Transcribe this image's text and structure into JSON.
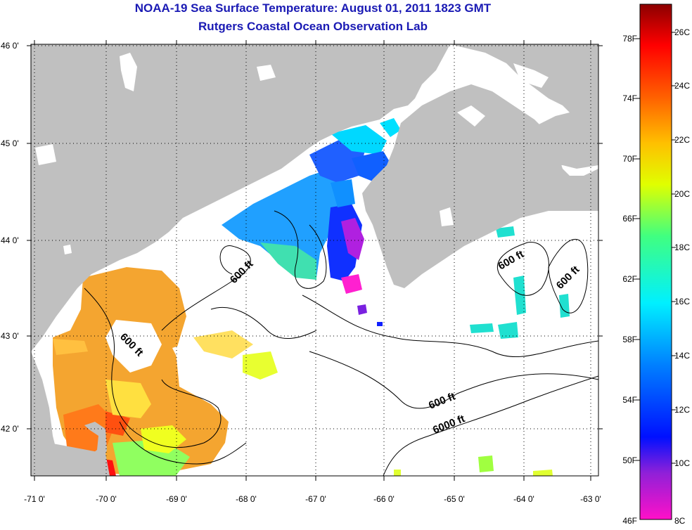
{
  "header": {
    "title": "NOAA-19 Sea Surface Temperature:  August 01, 2011 1823 GMT",
    "subtitle": "Rutgers Coastal Ocean Observation Lab"
  },
  "map": {
    "lon_ticks": [
      "-71 0'",
      "-70 0'",
      "-69 0'",
      "-68 0'",
      "-67 0'",
      "-66 0'",
      "-65 0'",
      "-64 0'",
      "-63 0'"
    ],
    "lat_ticks": [
      "46 0'",
      "45 0'",
      "44 0'",
      "43 0'",
      "42 0'"
    ],
    "contour_labels": [
      "600 ft",
      "600 ft",
      "600 ft",
      "600 ft",
      "600 ft",
      "6000 ft"
    ],
    "colors": {
      "land": "#c0c0c0",
      "water": "#ffffff",
      "grid": "#000000"
    }
  },
  "colorbar": {
    "fahrenheit": [
      "78F",
      "74F",
      "70F",
      "66F",
      "62F",
      "58F",
      "54F",
      "50F",
      "46F"
    ],
    "celsius": [
      "26C",
      "24C",
      "22C",
      "20C",
      "18C",
      "16C",
      "14C",
      "12C",
      "10C",
      "8C"
    ]
  }
}
